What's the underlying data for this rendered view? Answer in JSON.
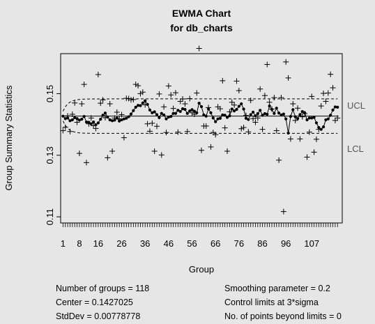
{
  "chart_data": {
    "type": "line",
    "title": "EWMA Chart",
    "subtitle": "for db_charts",
    "xlabel": "Group",
    "ylabel": "Group Summary Statistics",
    "xlim": [
      0,
      120
    ],
    "ylim": [
      0.108,
      0.163
    ],
    "yticks": [
      0.11,
      0.13,
      0.15
    ],
    "yticks_labels": [
      "0.11",
      "0.13",
      "0.15"
    ],
    "xticks_labels": [
      "1",
      "8",
      "16",
      "26",
      "36",
      "46",
      "56",
      "66",
      "76",
      "86",
      "96",
      "107"
    ],
    "xticks_positions": [
      1,
      8,
      16,
      26,
      36,
      46,
      56,
      66,
      76,
      86,
      96,
      107
    ],
    "center": 0.1427025,
    "ucl_label": "UCL",
    "lcl_label": "LCL",
    "ucl_limit": 0.1483,
    "lcl_limit": 0.1371,
    "limit_first_offset": 0.0016,
    "stats": [
      {
        "text": "Number of groups = 118"
      },
      {
        "text": "Center = 0.1427025"
      },
      {
        "text": "StdDev = 0.00778778"
      },
      {
        "text": "Smoothing parameter =  0.2"
      },
      {
        "text": "Control limits at 3*sigma"
      },
      {
        "text": "No. of points beyond limits = 0"
      }
    ],
    "series": [
      {
        "name": "",
        "values": [
          0.1427,
          0.1419,
          0.1421,
          0.1412,
          0.1415,
          0.1422,
          0.1419,
          0.1414,
          0.1417,
          0.1426,
          0.1408,
          0.1407,
          0.1402,
          0.1408,
          0.1399,
          0.1405,
          0.1417,
          0.143,
          0.1437,
          0.1424,
          0.1415,
          0.1412,
          0.1414,
          0.1421,
          0.1411,
          0.1415,
          0.1418,
          0.142,
          0.1425,
          0.1434,
          0.1445,
          0.1456,
          0.1462,
          0.1461,
          0.147,
          0.1477,
          0.1465,
          0.1447,
          0.1438,
          0.1441,
          0.1432,
          0.1422,
          0.1436,
          0.1431,
          0.1418,
          0.1424,
          0.1426,
          0.1436,
          0.1436,
          0.1446,
          0.1442,
          0.1451,
          0.1449,
          0.1436,
          0.1444,
          0.1448,
          0.1443,
          0.1438,
          0.1469,
          0.1458,
          0.1431,
          0.1427,
          0.145,
          0.1438,
          0.1421,
          0.1409,
          0.1418,
          0.142,
          0.1431,
          0.143,
          0.1423,
          0.1428,
          0.145,
          0.1444,
          0.1449,
          0.1459,
          0.1467,
          0.145,
          0.142,
          0.1416,
          0.1432,
          0.144,
          0.1428,
          0.1435,
          0.1446,
          0.143,
          0.1435,
          0.1433,
          0.146,
          0.1449,
          0.1436,
          0.1453,
          0.1437,
          0.1431,
          0.1434,
          0.1418,
          0.1372,
          0.1426,
          0.1448,
          0.1425,
          0.1419,
          0.1432,
          0.1442,
          0.1438,
          0.1415,
          0.1421,
          0.1421,
          0.1423,
          0.1405,
          0.139,
          0.1384,
          0.1392,
          0.1415,
          0.1418,
          0.143,
          0.1447,
          0.1457,
          0.1456
        ]
      },
      {
        "name": "",
        "values": [
          0.138,
          0.1391,
          0.1428,
          0.1377,
          0.1433,
          0.147,
          0.1407,
          0.1306,
          0.1467,
          0.153,
          0.1276,
          0.1402,
          0.1421,
          0.1396,
          0.1387,
          0.1562,
          0.1469,
          0.148,
          0.1422,
          0.1292,
          0.1467,
          0.1313,
          0.1421,
          0.144,
          0.1418,
          0.1432,
          0.1357,
          0.1485,
          0.1484,
          0.148,
          0.1481,
          0.153,
          0.1526,
          0.15,
          0.1505,
          0.1464,
          0.1402,
          0.1378,
          0.1404,
          0.1313,
          0.1394,
          0.1499,
          0.1301,
          0.1457,
          0.1374,
          0.1525,
          0.1496,
          0.1452,
          0.1503,
          0.1375,
          0.1475,
          0.1483,
          0.1467,
          0.1377,
          0.1484,
          0.1438,
          0.1433,
          0.1502,
          0.1647,
          0.1316,
          0.1395,
          0.1395,
          0.1455,
          0.1327,
          0.1374,
          0.1367,
          0.1457,
          0.1451,
          0.1542,
          0.1389,
          0.1313,
          0.1441,
          0.1472,
          0.1463,
          0.1541,
          0.151,
          0.1386,
          0.139,
          0.1429,
          0.1376,
          0.1478,
          0.1419,
          0.1407,
          0.1421,
          0.1515,
          0.1384,
          0.1494,
          0.1595,
          0.1472,
          0.145,
          0.1487,
          0.138,
          0.1284,
          0.1487,
          0.1117,
          0.1603,
          0.1551,
          0.1353,
          0.1467,
          0.1413,
          0.1453,
          0.1353,
          0.1425,
          0.1435,
          0.1294,
          0.1375,
          0.1491,
          0.131,
          0.1352,
          0.1384,
          0.146,
          0.1501,
          0.1475,
          0.1502,
          0.1563,
          0.1519,
          0.1413,
          0.1421
        ]
      }
    ]
  }
}
